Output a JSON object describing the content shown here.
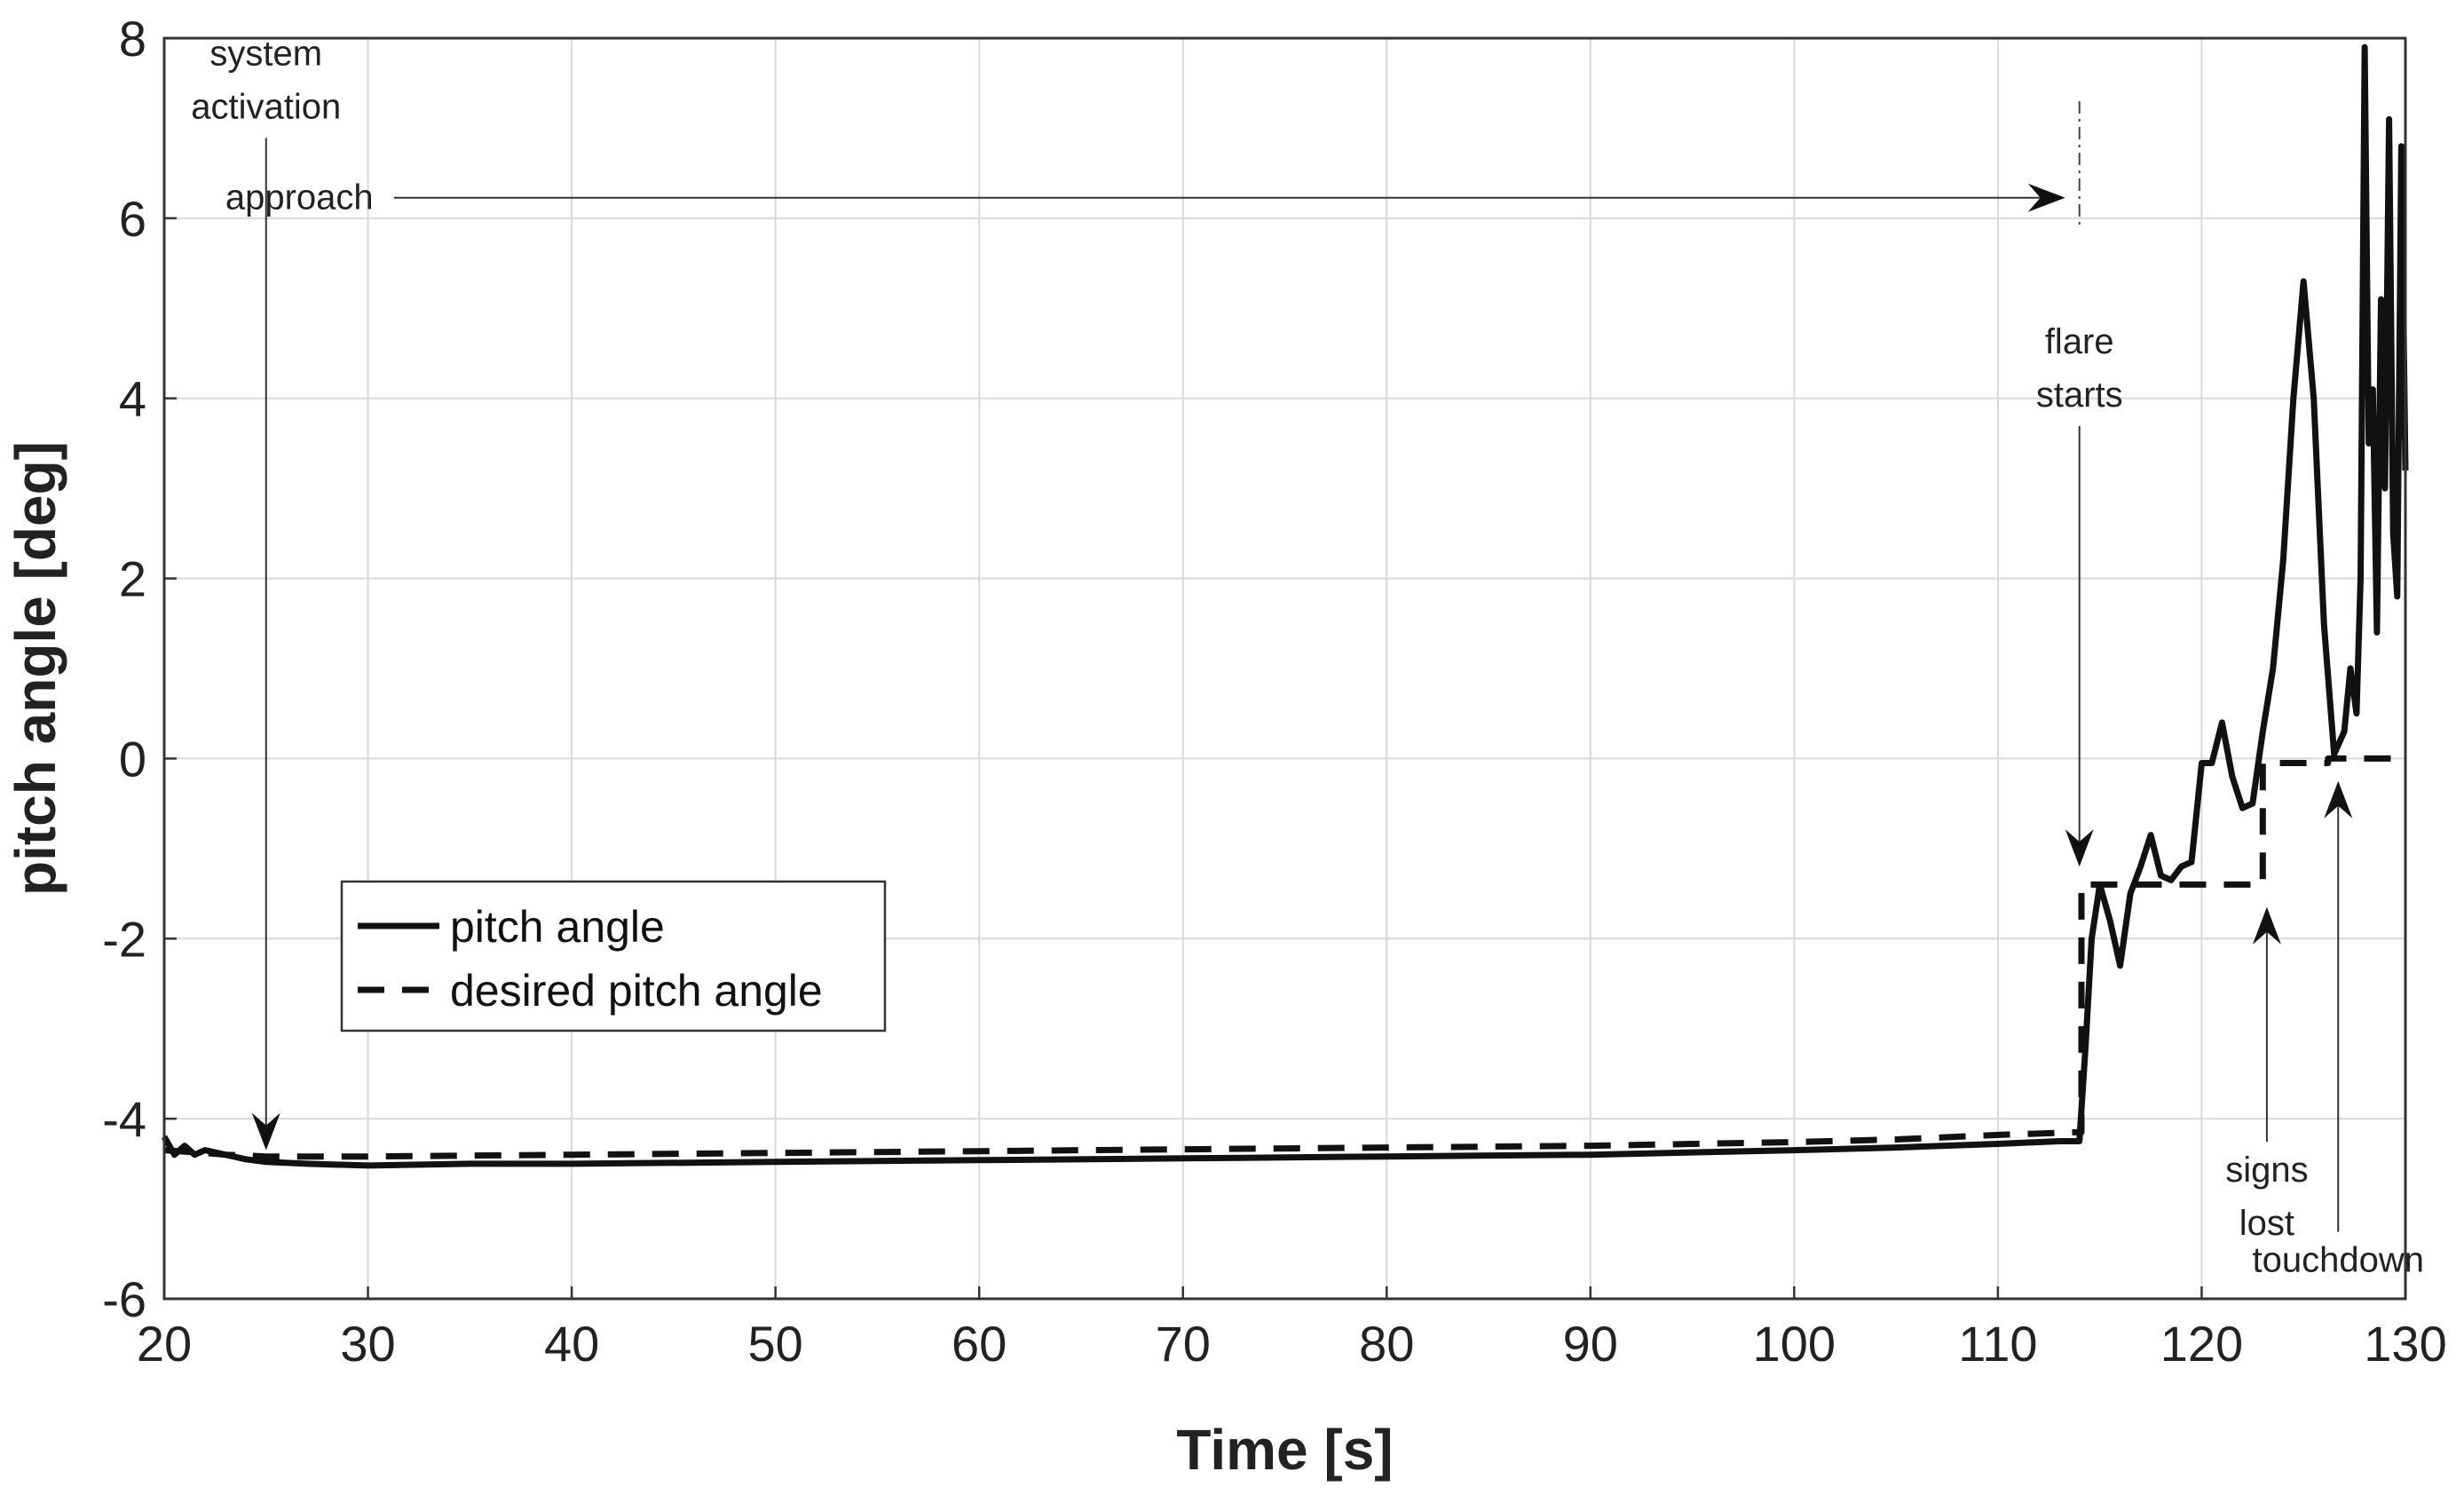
{
  "chart_data": {
    "type": "line",
    "title": "",
    "xlabel": "Time [s]",
    "ylabel": "pitch angle [deg]",
    "xlim": [
      20,
      130
    ],
    "ylim": [
      -6,
      8
    ],
    "xticks": [
      20,
      30,
      40,
      50,
      60,
      70,
      80,
      90,
      100,
      110,
      120,
      130
    ],
    "yticks": [
      -6,
      -4,
      -2,
      0,
      2,
      4,
      6,
      8
    ],
    "grid": true,
    "legend_position": "lower-left",
    "series": [
      {
        "name": "pitch angle",
        "style": "solid",
        "x": [
          20,
          20.5,
          21,
          21.5,
          22,
          23,
          24,
          25,
          27,
          30,
          35,
          40,
          50,
          60,
          70,
          80,
          90,
          100,
          105,
          110,
          113,
          114,
          114.3,
          114.6,
          115,
          115.5,
          116,
          116.5,
          117,
          117.5,
          118,
          118.5,
          119,
          119.5,
          120,
          120.5,
          121,
          121.5,
          122,
          122.5,
          123,
          123.5,
          124,
          124.5,
          125,
          125.5,
          126,
          126.5,
          127,
          127.3,
          127.6,
          127.8,
          128,
          128.2,
          128.4,
          128.6,
          128.8,
          129,
          129.2,
          129.4,
          129.6,
          129.8,
          130
        ],
        "y": [
          -4.2,
          -4.4,
          -4.3,
          -4.4,
          -4.35,
          -4.4,
          -4.45,
          -4.48,
          -4.5,
          -4.52,
          -4.5,
          -4.5,
          -4.48,
          -4.46,
          -4.44,
          -4.42,
          -4.4,
          -4.35,
          -4.32,
          -4.28,
          -4.25,
          -4.25,
          -3.2,
          -2,
          -1.4,
          -1.8,
          -2.3,
          -1.5,
          -1.2,
          -0.85,
          -1.3,
          -1.35,
          -1.2,
          -1.15,
          -0.05,
          -0.05,
          0.4,
          -0.2,
          -0.55,
          -0.5,
          0.3,
          1,
          2.2,
          4,
          5.3,
          4,
          1.5,
          0.05,
          0.3,
          1,
          0.5,
          2,
          7.9,
          3.5,
          4.1,
          1.4,
          5.1,
          3,
          7.1,
          2.5,
          1.8,
          6.8,
          3.2
        ]
      },
      {
        "name": "desired pitch angle",
        "style": "dashed",
        "x": [
          20,
          22,
          23,
          25,
          30,
          40,
          50,
          60,
          70,
          80,
          90,
          100,
          105,
          110,
          113.8,
          114.1,
          114.1,
          123,
          123,
          126.2,
          126.2,
          130
        ],
        "y": [
          -4.35,
          -4.38,
          -4.4,
          -4.42,
          -4.42,
          -4.4,
          -4.38,
          -4.36,
          -4.34,
          -4.32,
          -4.3,
          -4.26,
          -4.23,
          -4.18,
          -4.15,
          -4.15,
          -1.4,
          -1.4,
          -0.05,
          -0.05,
          0,
          0
        ]
      }
    ],
    "annotations": [
      {
        "lines": [
          "system",
          "activation"
        ],
        "x": 25,
        "y": 7.7,
        "arrow_to": [
          25,
          -4.35
        ]
      },
      {
        "lines": [
          "approach"
        ],
        "x": 23,
        "y": 6.1,
        "arrow_to": [
          113.3,
          6.1
        ]
      },
      {
        "lines": [
          "flare",
          "starts"
        ],
        "x": 114,
        "y": 4.5,
        "arrow_to": [
          114,
          -1.2
        ]
      },
      {
        "lines": [
          "signs",
          "lost"
        ],
        "x": 123.2,
        "y": -4.7,
        "arrow_to": [
          123.2,
          -1.65
        ]
      },
      {
        "lines": [
          "touchdown"
        ],
        "x": 126.7,
        "y": -5.7,
        "arrow_to": [
          126.7,
          -0.25
        ]
      }
    ]
  }
}
